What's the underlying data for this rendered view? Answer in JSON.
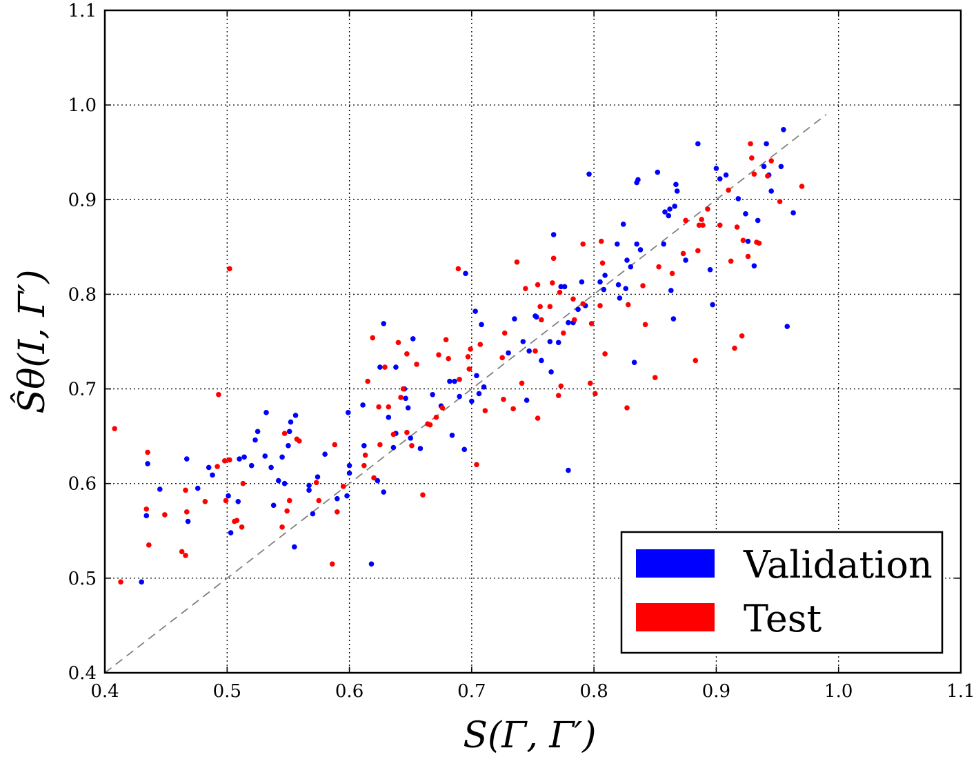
{
  "chart_data": {
    "type": "scatter",
    "title": "",
    "xlabel": "S(Γ, Γ′)",
    "ylabel": "Ŝθ(I, Γ′)",
    "xlim": [
      0.4,
      1.1
    ],
    "ylim": [
      0.4,
      1.1
    ],
    "xticks": [
      "0.4",
      "0.5",
      "0.6",
      "0.7",
      "0.8",
      "0.9",
      "1.0",
      "1.1"
    ],
    "yticks": [
      "0.4",
      "0.5",
      "0.6",
      "0.7",
      "0.8",
      "0.9",
      "1.0",
      "1.1"
    ],
    "grid": true,
    "reference_line": {
      "x": [
        0.4,
        0.99
      ],
      "y": [
        0.4,
        0.99
      ],
      "style": "dashed",
      "color": "#808080"
    },
    "legend_position": "bottom-right",
    "series": [
      {
        "name": "Validation",
        "color": "#0000ff",
        "points": [
          [
            0.43,
            0.496
          ],
          [
            0.434,
            0.566
          ],
          [
            0.435,
            0.621
          ],
          [
            0.445,
            0.594
          ],
          [
            0.467,
            0.626
          ],
          [
            0.468,
            0.56
          ],
          [
            0.476,
            0.595
          ],
          [
            0.485,
            0.617
          ],
          [
            0.488,
            0.609
          ],
          [
            0.501,
            0.587
          ],
          [
            0.503,
            0.548
          ],
          [
            0.509,
            0.581
          ],
          [
            0.51,
            0.626
          ],
          [
            0.514,
            0.628
          ],
          [
            0.52,
            0.619
          ],
          [
            0.523,
            0.646
          ],
          [
            0.525,
            0.655
          ],
          [
            0.531,
            0.629
          ],
          [
            0.532,
            0.675
          ],
          [
            0.536,
            0.617
          ],
          [
            0.538,
            0.577
          ],
          [
            0.542,
            0.603
          ],
          [
            0.545,
            0.628
          ],
          [
            0.547,
            0.6
          ],
          [
            0.55,
            0.64
          ],
          [
            0.551,
            0.655
          ],
          [
            0.552,
            0.665
          ],
          [
            0.555,
            0.533
          ],
          [
            0.556,
            0.672
          ],
          [
            0.567,
            0.598
          ],
          [
            0.567,
            0.593
          ],
          [
            0.57,
            0.568
          ],
          [
            0.574,
            0.607
          ],
          [
            0.58,
            0.631
          ],
          [
            0.59,
            0.584
          ],
          [
            0.598,
            0.587
          ],
          [
            0.599,
            0.675
          ],
          [
            0.6,
            0.619
          ],
          [
            0.6,
            0.611
          ],
          [
            0.611,
            0.683
          ],
          [
            0.612,
            0.64
          ],
          [
            0.618,
            0.515
          ],
          [
            0.623,
            0.603
          ],
          [
            0.625,
            0.723
          ],
          [
            0.628,
            0.591
          ],
          [
            0.628,
            0.769
          ],
          [
            0.632,
            0.67
          ],
          [
            0.636,
            0.638
          ],
          [
            0.638,
            0.723
          ],
          [
            0.638,
            0.653
          ],
          [
            0.645,
            0.7
          ],
          [
            0.646,
            0.69
          ],
          [
            0.648,
            0.68
          ],
          [
            0.65,
            0.648
          ],
          [
            0.652,
            0.753
          ],
          [
            0.658,
            0.637
          ],
          [
            0.668,
            0.694
          ],
          [
            0.675,
            0.682
          ],
          [
            0.682,
            0.708
          ],
          [
            0.684,
            0.651
          ],
          [
            0.686,
            0.708
          ],
          [
            0.69,
            0.692
          ],
          [
            0.694,
            0.636
          ],
          [
            0.695,
            0.822
          ],
          [
            0.7,
            0.687
          ],
          [
            0.703,
            0.782
          ],
          [
            0.704,
            0.714
          ],
          [
            0.706,
            0.695
          ],
          [
            0.708,
            0.768
          ],
          [
            0.71,
            0.702
          ],
          [
            0.73,
            0.738
          ],
          [
            0.735,
            0.774
          ],
          [
            0.742,
            0.75
          ],
          [
            0.745,
            0.688
          ],
          [
            0.747,
            0.74
          ],
          [
            0.752,
            0.777
          ],
          [
            0.753,
            0.776
          ],
          [
            0.757,
            0.73
          ],
          [
            0.764,
            0.75
          ],
          [
            0.765,
            0.718
          ],
          [
            0.767,
            0.863
          ],
          [
            0.771,
            0.749
          ],
          [
            0.773,
            0.808
          ],
          [
            0.776,
            0.808
          ],
          [
            0.779,
            0.77
          ],
          [
            0.779,
            0.614
          ],
          [
            0.783,
            0.77
          ],
          [
            0.787,
            0.784
          ],
          [
            0.79,
            0.813
          ],
          [
            0.793,
            0.788
          ],
          [
            0.796,
            0.927
          ],
          [
            0.805,
            0.813
          ],
          [
            0.808,
            0.805
          ],
          [
            0.809,
            0.82
          ],
          [
            0.819,
            0.853
          ],
          [
            0.82,
            0.81
          ],
          [
            0.821,
            0.796
          ],
          [
            0.824,
            0.874
          ],
          [
            0.826,
            0.806
          ],
          [
            0.827,
            0.836
          ],
          [
            0.83,
            0.829
          ],
          [
            0.833,
            0.728
          ],
          [
            0.835,
            0.853
          ],
          [
            0.835,
            0.918
          ],
          [
            0.836,
            0.921
          ],
          [
            0.838,
            0.847
          ],
          [
            0.852,
            0.929
          ],
          [
            0.857,
            0.853
          ],
          [
            0.858,
            0.887
          ],
          [
            0.861,
            0.883
          ],
          [
            0.862,
            0.89
          ],
          [
            0.863,
            0.804
          ],
          [
            0.865,
            0.774
          ],
          [
            0.866,
            0.893
          ],
          [
            0.867,
            0.916
          ],
          [
            0.868,
            0.909
          ],
          [
            0.875,
            0.836
          ],
          [
            0.885,
            0.959
          ],
          [
            0.895,
            0.826
          ],
          [
            0.897,
            0.789
          ],
          [
            0.9,
            0.933
          ],
          [
            0.903,
            0.922
          ],
          [
            0.908,
            0.926
          ],
          [
            0.918,
            0.901
          ],
          [
            0.924,
            0.885
          ],
          [
            0.926,
            0.856
          ],
          [
            0.931,
            0.83
          ],
          [
            0.934,
            0.878
          ],
          [
            0.939,
            0.935
          ],
          [
            0.941,
            0.959
          ],
          [
            0.943,
            0.926
          ],
          [
            0.945,
            0.909
          ],
          [
            0.955,
            0.974
          ],
          [
            0.953,
            0.935
          ],
          [
            0.958,
            0.766
          ],
          [
            0.963,
            0.886
          ]
        ]
      },
      {
        "name": "Test",
        "color": "#ff0000",
        "points": [
          [
            0.408,
            0.658
          ],
          [
            0.413,
            0.496
          ],
          [
            0.434,
            0.573
          ],
          [
            0.435,
            0.633
          ],
          [
            0.436,
            0.535
          ],
          [
            0.449,
            0.567
          ],
          [
            0.463,
            0.528
          ],
          [
            0.466,
            0.524
          ],
          [
            0.466,
            0.593
          ],
          [
            0.467,
            0.57
          ],
          [
            0.482,
            0.581
          ],
          [
            0.492,
            0.618
          ],
          [
            0.493,
            0.694
          ],
          [
            0.498,
            0.624
          ],
          [
            0.499,
            0.582
          ],
          [
            0.502,
            0.625
          ],
          [
            0.502,
            0.827
          ],
          [
            0.506,
            0.56
          ],
          [
            0.508,
            0.561
          ],
          [
            0.512,
            0.554
          ],
          [
            0.513,
            0.6
          ],
          [
            0.545,
            0.554
          ],
          [
            0.547,
            0.653
          ],
          [
            0.549,
            0.571
          ],
          [
            0.551,
            0.582
          ],
          [
            0.557,
            0.647
          ],
          [
            0.559,
            0.645
          ],
          [
            0.573,
            0.601
          ],
          [
            0.575,
            0.582
          ],
          [
            0.586,
            0.515
          ],
          [
            0.588,
            0.641
          ],
          [
            0.59,
            0.57
          ],
          [
            0.595,
            0.597
          ],
          [
            0.612,
            0.619
          ],
          [
            0.613,
            0.63
          ],
          [
            0.615,
            0.708
          ],
          [
            0.62,
            0.606
          ],
          [
            0.619,
            0.754
          ],
          [
            0.624,
            0.681
          ],
          [
            0.625,
            0.641
          ],
          [
            0.629,
            0.723
          ],
          [
            0.632,
            0.681
          ],
          [
            0.636,
            0.652
          ],
          [
            0.64,
            0.749
          ],
          [
            0.642,
            0.691
          ],
          [
            0.644,
            0.7
          ],
          [
            0.647,
            0.737
          ],
          [
            0.647,
            0.654
          ],
          [
            0.651,
            0.64
          ],
          [
            0.655,
            0.726
          ],
          [
            0.66,
            0.588
          ],
          [
            0.664,
            0.663
          ],
          [
            0.666,
            0.662
          ],
          [
            0.671,
            0.67
          ],
          [
            0.673,
            0.736
          ],
          [
            0.676,
            0.68
          ],
          [
            0.679,
            0.752
          ],
          [
            0.681,
            0.732
          ],
          [
            0.689,
            0.827
          ],
          [
            0.69,
            0.71
          ],
          [
            0.697,
            0.734
          ],
          [
            0.698,
            0.721
          ],
          [
            0.699,
            0.742
          ],
          [
            0.704,
            0.62
          ],
          [
            0.707,
            0.747
          ],
          [
            0.711,
            0.677
          ],
          [
            0.725,
            0.733
          ],
          [
            0.726,
            0.689
          ],
          [
            0.727,
            0.759
          ],
          [
            0.734,
            0.679
          ],
          [
            0.737,
            0.834
          ],
          [
            0.741,
            0.706
          ],
          [
            0.744,
            0.806
          ],
          [
            0.752,
            0.74
          ],
          [
            0.754,
            0.81
          ],
          [
            0.754,
            0.669
          ],
          [
            0.756,
            0.787
          ],
          [
            0.757,
            0.773
          ],
          [
            0.764,
            0.787
          ],
          [
            0.766,
            0.812
          ],
          [
            0.767,
            0.838
          ],
          [
            0.771,
            0.693
          ],
          [
            0.772,
            0.802
          ],
          [
            0.773,
            0.703
          ],
          [
            0.775,
            0.759
          ],
          [
            0.783,
            0.795
          ],
          [
            0.784,
            0.773
          ],
          [
            0.791,
            0.853
          ],
          [
            0.791,
            0.79
          ],
          [
            0.797,
            0.706
          ],
          [
            0.798,
            0.769
          ],
          [
            0.801,
            0.695
          ],
          [
            0.805,
            0.788
          ],
          [
            0.806,
            0.856
          ],
          [
            0.807,
            0.833
          ],
          [
            0.809,
            0.737
          ],
          [
            0.827,
            0.68
          ],
          [
            0.828,
            0.789
          ],
          [
            0.84,
            0.809
          ],
          [
            0.842,
            0.768
          ],
          [
            0.85,
            0.712
          ],
          [
            0.853,
            0.829
          ],
          [
            0.864,
            0.822
          ],
          [
            0.873,
            0.843
          ],
          [
            0.875,
            0.878
          ],
          [
            0.883,
            0.73
          ],
          [
            0.885,
            0.846
          ],
          [
            0.886,
            0.873
          ],
          [
            0.888,
            0.879
          ],
          [
            0.889,
            0.873
          ],
          [
            0.893,
            0.89
          ],
          [
            0.903,
            0.873
          ],
          [
            0.91,
            0.91
          ],
          [
            0.912,
            0.835
          ],
          [
            0.915,
            0.743
          ],
          [
            0.917,
            0.871
          ],
          [
            0.921,
            0.756
          ],
          [
            0.922,
            0.857
          ],
          [
            0.926,
            0.84
          ],
          [
            0.928,
            0.959
          ],
          [
            0.929,
            0.944
          ],
          [
            0.931,
            0.927
          ],
          [
            0.933,
            0.855
          ],
          [
            0.935,
            0.854
          ],
          [
            0.942,
            0.925
          ],
          [
            0.945,
            0.941
          ],
          [
            0.952,
            0.898
          ],
          [
            0.97,
            0.914
          ]
        ]
      }
    ]
  }
}
